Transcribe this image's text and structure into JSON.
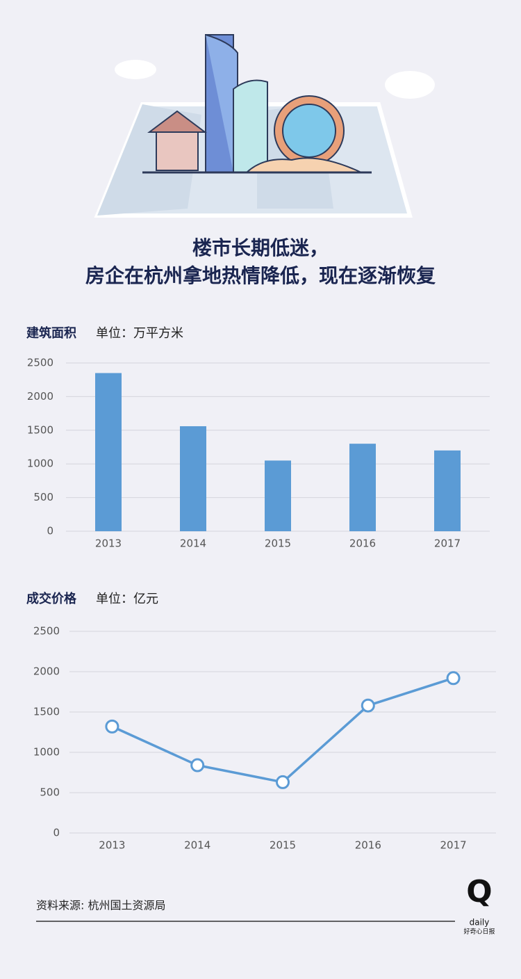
{
  "title": [
    "楼市长期低迷，",
    "房企在杭州拿地热情降低，现在逐渐恢复"
  ],
  "chart_data": [
    {
      "type": "bar",
      "title": "建筑面积",
      "subtitle": "单位：万平方米",
      "categories": [
        "2013",
        "2014",
        "2015",
        "2016",
        "2017"
      ],
      "values": [
        2350,
        1560,
        1050,
        1300,
        1200
      ],
      "color": "#5b9bd5",
      "ylim": [
        0,
        2500
      ],
      "yticks": [
        0,
        500,
        1000,
        1500,
        2000,
        2500
      ],
      "grid": true
    },
    {
      "type": "line",
      "title": "成交价格",
      "subtitle": "单位：亿元",
      "categories": [
        "2013",
        "2014",
        "2015",
        "2016",
        "2017"
      ],
      "values": [
        1320,
        840,
        630,
        1580,
        1920
      ],
      "color": "#5b9bd5",
      "ylim": [
        0,
        2500
      ],
      "yticks": [
        0,
        500,
        1000,
        1500,
        2000,
        2500
      ],
      "grid": true
    }
  ],
  "source": "资料来源: 杭州国土资源局",
  "logo": {
    "mark": "Q",
    "word": "daily",
    "name": "好奇心日报"
  }
}
